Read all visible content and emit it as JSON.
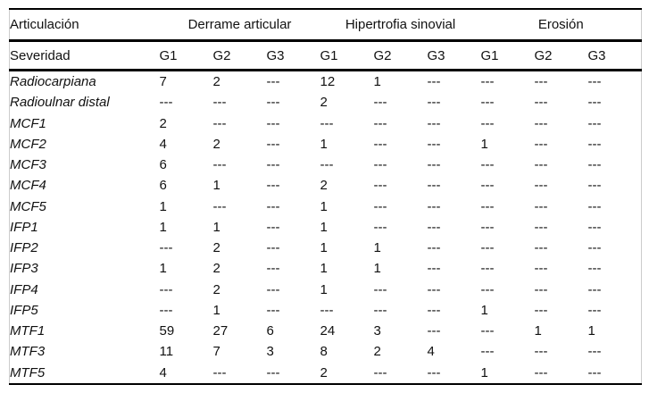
{
  "table": {
    "header_row1": {
      "col0": "Articulación",
      "groups": [
        "Derrame articular",
        "Hipertrofia sinovial",
        "Erosión"
      ]
    },
    "header_row2": {
      "col0": "Severidad",
      "grades": [
        "G1",
        "G2",
        "G3",
        "G1",
        "G2",
        "G3",
        "G1",
        "G2",
        "G3"
      ]
    },
    "empty_marker": "---",
    "rows": [
      {
        "label": "Radiocarpiana",
        "values": [
          "7",
          "2",
          "---",
          "12",
          "1",
          "---",
          "---",
          "---",
          "---"
        ]
      },
      {
        "label": "Radioulnar distal",
        "values": [
          "---",
          "---",
          "---",
          "2",
          "---",
          "---",
          "---",
          "---",
          "---"
        ]
      },
      {
        "label": "MCF1",
        "values": [
          "2",
          "---",
          "---",
          "---",
          "---",
          "---",
          "---",
          "---",
          "---"
        ]
      },
      {
        "label": "MCF2",
        "values": [
          "4",
          "2",
          "---",
          "1",
          "---",
          "---",
          "1",
          "---",
          "---"
        ]
      },
      {
        "label": "MCF3",
        "values": [
          "6",
          "---",
          "---",
          "---",
          "---",
          "---",
          "---",
          "---",
          "---"
        ]
      },
      {
        "label": "MCF4",
        "values": [
          "6",
          "1",
          "---",
          "2",
          "---",
          "---",
          "---",
          "---",
          "---"
        ]
      },
      {
        "label": "MCF5",
        "values": [
          "1",
          "---",
          "---",
          "1",
          "---",
          "---",
          "---",
          "---",
          "---"
        ]
      },
      {
        "label": "IFP1",
        "values": [
          "1",
          "1",
          "---",
          "1",
          "---",
          "---",
          "---",
          "---",
          "---"
        ]
      },
      {
        "label": "IFP2",
        "values": [
          "---",
          "2",
          "---",
          "1",
          "1",
          "---",
          "---",
          "---",
          "---"
        ]
      },
      {
        "label": "IFP3",
        "values": [
          "1",
          "2",
          "---",
          "1",
          "1",
          "---",
          "---",
          "---",
          "---"
        ]
      },
      {
        "label": "IFP4",
        "values": [
          "---",
          "2",
          "---",
          "1",
          "---",
          "---",
          "---",
          "---",
          "---"
        ]
      },
      {
        "label": "IFP5",
        "values": [
          "---",
          "1",
          "---",
          "---",
          "---",
          "---",
          "1",
          "---",
          "---"
        ]
      },
      {
        "label": "MTF1",
        "values": [
          "59",
          "27",
          "6",
          "24",
          "3",
          "---",
          "---",
          "1",
          "1"
        ]
      },
      {
        "label": "MTF3",
        "values": [
          "11",
          "7",
          "3",
          "8",
          "2",
          "4",
          "---",
          "---",
          "---"
        ]
      },
      {
        "label": "MTF5",
        "values": [
          "4",
          "---",
          "---",
          "2",
          "---",
          "---",
          "1",
          "---",
          "---"
        ]
      }
    ]
  },
  "colors": {
    "text": "#111111",
    "rule": "#000000",
    "frame": "#cccccc",
    "background": "#ffffff"
  }
}
